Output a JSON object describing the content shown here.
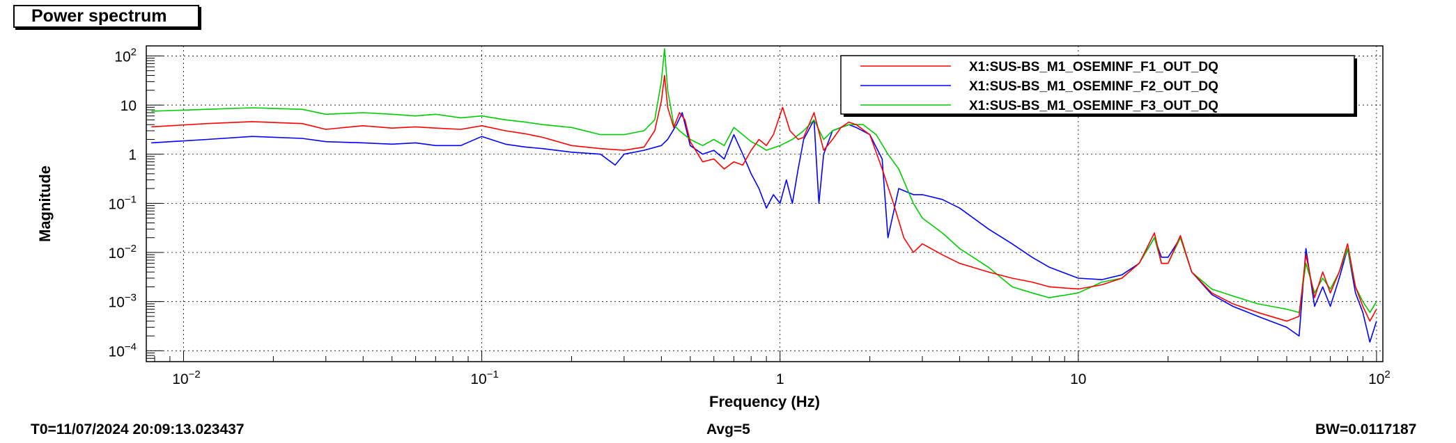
{
  "title": "Power spectrum",
  "footer": {
    "t0": "T0=11/07/2024 20:09:13.023437",
    "avg": "Avg=5",
    "bw": "BW=0.0117187"
  },
  "chart_data": {
    "type": "line",
    "title": "Power spectrum",
    "xlabel": "Frequency (Hz)",
    "ylabel": "Magnitude",
    "xscale": "log",
    "yscale": "log",
    "xlim": [
      0.0075,
      105
    ],
    "ylim": [
      6e-05,
      160
    ],
    "grid": true,
    "legend_position": "top-right",
    "x_ticks": [
      {
        "value": 0.01,
        "base": "10",
        "exp": "−2"
      },
      {
        "value": 0.1,
        "base": "10",
        "exp": "−1"
      },
      {
        "value": 1,
        "base": "1",
        "exp": ""
      },
      {
        "value": 10,
        "base": "10",
        "exp": ""
      },
      {
        "value": 100,
        "base": "10",
        "exp": "2"
      }
    ],
    "y_ticks": [
      {
        "value": 100,
        "base": "10",
        "exp": "2"
      },
      {
        "value": 10,
        "base": "10",
        "exp": ""
      },
      {
        "value": 1,
        "base": "1",
        "exp": ""
      },
      {
        "value": 0.1,
        "base": "10",
        "exp": "−1"
      },
      {
        "value": 0.01,
        "base": "10",
        "exp": "−2"
      },
      {
        "value": 0.001,
        "base": "10",
        "exp": "−3"
      },
      {
        "value": 0.0001,
        "base": "10",
        "exp": "−4"
      }
    ],
    "series": [
      {
        "name": "X1:SUS-BS_M1_OSEMINF_F1_OUT_DQ",
        "color": "#ff0000",
        "points": [
          [
            0.0078,
            3.6
          ],
          [
            0.012,
            4.2
          ],
          [
            0.017,
            4.6
          ],
          [
            0.025,
            4.2
          ],
          [
            0.03,
            3.2
          ],
          [
            0.04,
            3.8
          ],
          [
            0.05,
            3.4
          ],
          [
            0.06,
            3.6
          ],
          [
            0.07,
            3.4
          ],
          [
            0.085,
            3.2
          ],
          [
            0.1,
            3.8
          ],
          [
            0.12,
            3.0
          ],
          [
            0.14,
            2.6
          ],
          [
            0.16,
            2.2
          ],
          [
            0.2,
            1.5
          ],
          [
            0.25,
            1.3
          ],
          [
            0.3,
            1.2
          ],
          [
            0.35,
            1.4
          ],
          [
            0.38,
            3.0
          ],
          [
            0.4,
            12
          ],
          [
            0.41,
            40
          ],
          [
            0.42,
            9
          ],
          [
            0.44,
            3.5
          ],
          [
            0.46,
            7
          ],
          [
            0.48,
            5
          ],
          [
            0.5,
            1.8
          ],
          [
            0.55,
            0.7
          ],
          [
            0.6,
            0.8
          ],
          [
            0.65,
            0.5
          ],
          [
            0.7,
            0.7
          ],
          [
            0.75,
            0.6
          ],
          [
            0.8,
            1.2
          ],
          [
            0.85,
            2.0
          ],
          [
            0.9,
            1.5
          ],
          [
            0.95,
            2.5
          ],
          [
            1.02,
            9
          ],
          [
            1.08,
            3
          ],
          [
            1.15,
            2
          ],
          [
            1.2,
            2.2
          ],
          [
            1.3,
            7
          ],
          [
            1.4,
            1.2
          ],
          [
            1.5,
            2.0
          ],
          [
            1.6,
            3.5
          ],
          [
            1.7,
            4.5
          ],
          [
            1.8,
            4.0
          ],
          [
            2.0,
            2.5
          ],
          [
            2.2,
            0.5
          ],
          [
            2.4,
            0.1
          ],
          [
            2.6,
            0.02
          ],
          [
            2.8,
            0.01
          ],
          [
            3.0,
            0.015
          ],
          [
            3.5,
            0.009
          ],
          [
            4.0,
            0.006
          ],
          [
            5.0,
            0.004
          ],
          [
            6.0,
            0.003
          ],
          [
            7.0,
            0.0025
          ],
          [
            8.0,
            0.002
          ],
          [
            10,
            0.0018
          ],
          [
            12,
            0.0022
          ],
          [
            14,
            0.003
          ],
          [
            16,
            0.006
          ],
          [
            18,
            0.025
          ],
          [
            19,
            0.006
          ],
          [
            20,
            0.006
          ],
          [
            22,
            0.022
          ],
          [
            24,
            0.004
          ],
          [
            28,
            0.0015
          ],
          [
            33,
            0.0009
          ],
          [
            40,
            0.0006
          ],
          [
            50,
            0.0004
          ],
          [
            55,
            0.0005
          ],
          [
            58,
            0.009
          ],
          [
            62,
            0.0012
          ],
          [
            66,
            0.004
          ],
          [
            70,
            0.0015
          ],
          [
            75,
            0.004
          ],
          [
            80,
            0.015
          ],
          [
            85,
            0.002
          ],
          [
            90,
            0.0008
          ],
          [
            95,
            0.0004
          ],
          [
            100,
            0.0007
          ]
        ]
      },
      {
        "name": "X1:SUS-BS_M1_OSEMINF_F2_OUT_DQ",
        "color": "#0000ff",
        "points": [
          [
            0.0078,
            1.7
          ],
          [
            0.012,
            2.0
          ],
          [
            0.017,
            2.3
          ],
          [
            0.025,
            2.1
          ],
          [
            0.03,
            1.8
          ],
          [
            0.04,
            1.7
          ],
          [
            0.05,
            1.6
          ],
          [
            0.06,
            1.7
          ],
          [
            0.07,
            1.5
          ],
          [
            0.085,
            1.5
          ],
          [
            0.1,
            2.3
          ],
          [
            0.12,
            1.6
          ],
          [
            0.14,
            1.4
          ],
          [
            0.16,
            1.3
          ],
          [
            0.2,
            1.1
          ],
          [
            0.25,
            1.0
          ],
          [
            0.28,
            0.6
          ],
          [
            0.3,
            1.0
          ],
          [
            0.35,
            1.2
          ],
          [
            0.4,
            1.5
          ],
          [
            0.42,
            2.0
          ],
          [
            0.45,
            4
          ],
          [
            0.47,
            7
          ],
          [
            0.5,
            1.5
          ],
          [
            0.55,
            1.0
          ],
          [
            0.6,
            1.2
          ],
          [
            0.65,
            0.8
          ],
          [
            0.7,
            2.5
          ],
          [
            0.75,
            1.0
          ],
          [
            0.8,
            0.4
          ],
          [
            0.85,
            0.2
          ],
          [
            0.9,
            0.08
          ],
          [
            0.95,
            0.15
          ],
          [
            1.0,
            0.1
          ],
          [
            1.05,
            0.3
          ],
          [
            1.1,
            0.1
          ],
          [
            1.15,
            0.5
          ],
          [
            1.2,
            2
          ],
          [
            1.3,
            5
          ],
          [
            1.35,
            0.1
          ],
          [
            1.4,
            1.0
          ],
          [
            1.5,
            3.0
          ],
          [
            1.6,
            3.5
          ],
          [
            1.7,
            4.0
          ],
          [
            1.8,
            3.5
          ],
          [
            2.0,
            2.5
          ],
          [
            2.2,
            0.8
          ],
          [
            2.3,
            0.02
          ],
          [
            2.5,
            0.2
          ],
          [
            2.8,
            0.15
          ],
          [
            3.0,
            0.15
          ],
          [
            3.5,
            0.12
          ],
          [
            4.0,
            0.08
          ],
          [
            5.0,
            0.03
          ],
          [
            6.0,
            0.015
          ],
          [
            7.0,
            0.008
          ],
          [
            8.0,
            0.005
          ],
          [
            10,
            0.003
          ],
          [
            12,
            0.0028
          ],
          [
            14,
            0.0035
          ],
          [
            16,
            0.006
          ],
          [
            18,
            0.02
          ],
          [
            19,
            0.008
          ],
          [
            20,
            0.008
          ],
          [
            22,
            0.02
          ],
          [
            24,
            0.004
          ],
          [
            28,
            0.0014
          ],
          [
            33,
            0.0008
          ],
          [
            40,
            0.0005
          ],
          [
            50,
            0.0003
          ],
          [
            55,
            0.0002
          ],
          [
            58,
            0.012
          ],
          [
            62,
            0.0008
          ],
          [
            66,
            0.002
          ],
          [
            70,
            0.0008
          ],
          [
            75,
            0.003
          ],
          [
            80,
            0.012
          ],
          [
            85,
            0.0015
          ],
          [
            90,
            0.0006
          ],
          [
            95,
            0.00015
          ],
          [
            100,
            0.0004
          ]
        ]
      },
      {
        "name": "X1:SUS-BS_M1_OSEMINF_F3_OUT_DQ",
        "color": "#00cc00",
        "points": [
          [
            0.0078,
            7.5
          ],
          [
            0.012,
            8.2
          ],
          [
            0.017,
            8.8
          ],
          [
            0.025,
            8.2
          ],
          [
            0.03,
            6.5
          ],
          [
            0.04,
            7.0
          ],
          [
            0.05,
            6.5
          ],
          [
            0.06,
            6.0
          ],
          [
            0.07,
            6.5
          ],
          [
            0.085,
            5.5
          ],
          [
            0.1,
            6.0
          ],
          [
            0.12,
            5.0
          ],
          [
            0.14,
            4.5
          ],
          [
            0.16,
            4.0
          ],
          [
            0.2,
            3.5
          ],
          [
            0.25,
            2.5
          ],
          [
            0.3,
            2.5
          ],
          [
            0.35,
            3.0
          ],
          [
            0.38,
            5.0
          ],
          [
            0.4,
            30
          ],
          [
            0.41,
            140
          ],
          [
            0.42,
            20
          ],
          [
            0.44,
            4.0
          ],
          [
            0.46,
            3.0
          ],
          [
            0.5,
            2.0
          ],
          [
            0.55,
            1.5
          ],
          [
            0.6,
            2.0
          ],
          [
            0.65,
            1.5
          ],
          [
            0.7,
            3.5
          ],
          [
            0.75,
            2.5
          ],
          [
            0.8,
            1.8
          ],
          [
            0.85,
            1.5
          ],
          [
            0.9,
            1.2
          ],
          [
            1.0,
            1.5
          ],
          [
            1.1,
            2.0
          ],
          [
            1.2,
            3.0
          ],
          [
            1.3,
            5.0
          ],
          [
            1.4,
            2.0
          ],
          [
            1.5,
            3.0
          ],
          [
            1.7,
            4.0
          ],
          [
            1.9,
            4.0
          ],
          [
            2.1,
            2.5
          ],
          [
            2.3,
            1.0
          ],
          [
            2.5,
            0.5
          ],
          [
            2.8,
            0.1
          ],
          [
            3.0,
            0.05
          ],
          [
            3.5,
            0.025
          ],
          [
            4.0,
            0.012
          ],
          [
            5.0,
            0.005
          ],
          [
            6.0,
            0.002
          ],
          [
            7.0,
            0.0015
          ],
          [
            8.0,
            0.0012
          ],
          [
            10,
            0.0015
          ],
          [
            12,
            0.0025
          ],
          [
            14,
            0.003
          ],
          [
            16,
            0.006
          ],
          [
            18,
            0.02
          ],
          [
            19,
            0.006
          ],
          [
            20,
            0.006
          ],
          [
            22,
            0.02
          ],
          [
            24,
            0.004
          ],
          [
            28,
            0.0018
          ],
          [
            33,
            0.0013
          ],
          [
            40,
            0.0009
          ],
          [
            50,
            0.0007
          ],
          [
            55,
            0.0006
          ],
          [
            58,
            0.006
          ],
          [
            62,
            0.0015
          ],
          [
            66,
            0.003
          ],
          [
            70,
            0.0018
          ],
          [
            75,
            0.004
          ],
          [
            80,
            0.012
          ],
          [
            85,
            0.002
          ],
          [
            90,
            0.001
          ],
          [
            95,
            0.0006
          ],
          [
            100,
            0.001
          ]
        ]
      }
    ]
  }
}
